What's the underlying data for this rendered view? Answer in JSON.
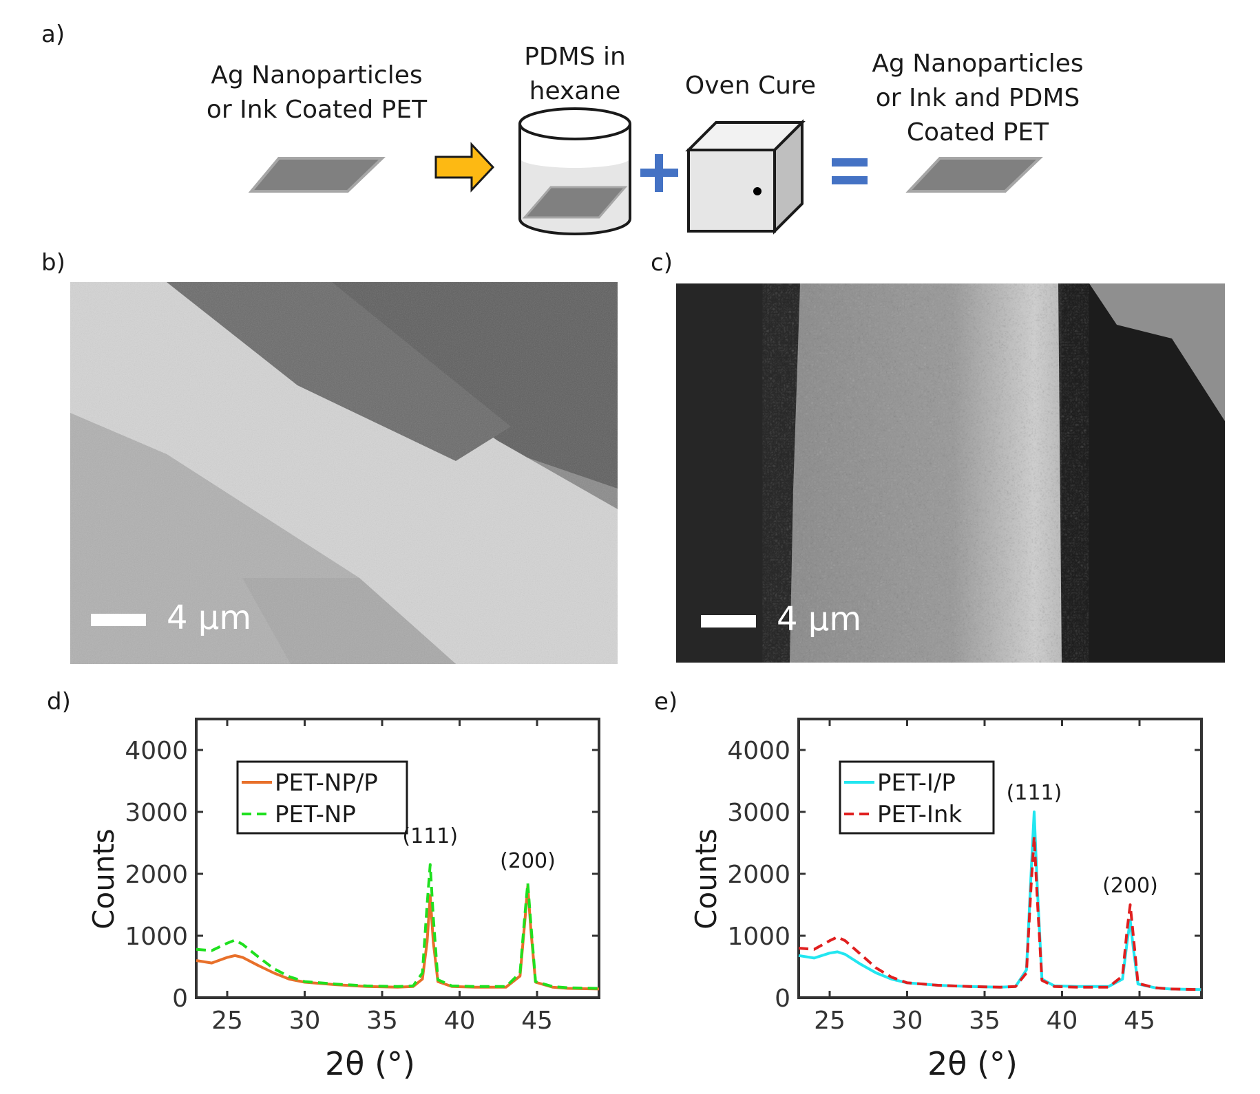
{
  "panels": {
    "a": {
      "label": "a)",
      "step1": "Ag Nanoparticles\nor Ink Coated PET",
      "step2": "PDMS in\nhexane",
      "step3": "Oven Cure",
      "step4": "Ag Nanoparticles\nor Ink and PDMS\nCoated PET",
      "plus": "+",
      "equals": "=",
      "colors": {
        "arrow": "#fdb913",
        "operator": "#4472c4",
        "substrate": "#808080"
      }
    },
    "b": {
      "label": "b)",
      "scale_label": "4 µm"
    },
    "c": {
      "label": "c)",
      "scale_label": "4 µm"
    },
    "d": {
      "label": "d)"
    },
    "e": {
      "label": "e)"
    }
  },
  "chart_data": [
    {
      "type": "line",
      "xlabel": "2θ  (°)",
      "ylabel": "Counts",
      "xlim": [
        23,
        49
      ],
      "ylim": [
        0,
        4500
      ],
      "xticks": [
        25,
        30,
        35,
        40,
        45
      ],
      "yticks": [
        0,
        1000,
        2000,
        3000,
        4000
      ],
      "legend_position": "top-left",
      "annotations": [
        {
          "text": "(111)",
          "x": 38.1,
          "y": 2500
        },
        {
          "text": "(200)",
          "x": 44.4,
          "y": 2100
        }
      ],
      "series": [
        {
          "name": "PET-NP/P",
          "color": "#e8702a",
          "style": "solid",
          "x": [
            23,
            24,
            25,
            25.5,
            26,
            27,
            28,
            29,
            30,
            32,
            34,
            36,
            37,
            37.6,
            37.9,
            38.1,
            38.3,
            38.6,
            39.5,
            41,
            43,
            43.9,
            44.2,
            44.4,
            44.6,
            44.9,
            46,
            47,
            49
          ],
          "y": [
            600,
            560,
            650,
            680,
            650,
            520,
            400,
            300,
            250,
            210,
            180,
            170,
            180,
            300,
            900,
            1650,
            900,
            260,
            180,
            170,
            170,
            350,
            1200,
            1800,
            1100,
            250,
            170,
            150,
            140
          ]
        },
        {
          "name": "PET-NP",
          "color": "#1fe01f",
          "style": "dashed",
          "x": [
            23,
            24,
            25,
            25.5,
            26,
            27,
            28,
            29,
            30,
            32,
            34,
            36,
            37,
            37.6,
            37.9,
            38.1,
            38.3,
            38.6,
            39.5,
            41,
            43,
            43.9,
            44.2,
            44.4,
            44.6,
            44.9,
            46,
            47,
            49
          ],
          "y": [
            780,
            760,
            880,
            930,
            860,
            660,
            470,
            340,
            260,
            220,
            190,
            180,
            190,
            400,
            1500,
            2150,
            1300,
            290,
            190,
            180,
            180,
            400,
            1300,
            1850,
            1200,
            260,
            180,
            160,
            150
          ]
        }
      ]
    },
    {
      "type": "line",
      "xlabel": "2θ  (°)",
      "ylabel": "Counts",
      "xlim": [
        23,
        49
      ],
      "ylim": [
        0,
        4500
      ],
      "xticks": [
        25,
        30,
        35,
        40,
        45
      ],
      "yticks": [
        0,
        1000,
        2000,
        3000,
        4000
      ],
      "legend_position": "top-left",
      "annotations": [
        {
          "text": "(111)",
          "x": 38.2,
          "y": 3200
        },
        {
          "text": "(200)",
          "x": 44.4,
          "y": 1700
        }
      ],
      "series": [
        {
          "name": "PET-I/P",
          "color": "#22e6f0",
          "style": "solid",
          "x": [
            23,
            24,
            25,
            25.5,
            26,
            27,
            28,
            29,
            30,
            32,
            34,
            36,
            37,
            37.7,
            38.0,
            38.2,
            38.4,
            38.7,
            39.5,
            41,
            43,
            43.9,
            44.2,
            44.4,
            44.6,
            44.9,
            46,
            47,
            49
          ],
          "y": [
            680,
            640,
            720,
            740,
            700,
            540,
            400,
            300,
            240,
            200,
            180,
            170,
            180,
            450,
            2000,
            3000,
            1800,
            300,
            190,
            180,
            180,
            300,
            900,
            1250,
            800,
            220,
            160,
            140,
            130
          ]
        },
        {
          "name": "PET-Ink",
          "color": "#e01f1f",
          "style": "dashed",
          "x": [
            23,
            24,
            25,
            25.5,
            26,
            27,
            28,
            29,
            30,
            32,
            34,
            36,
            37,
            37.7,
            38.0,
            38.2,
            38.4,
            38.7,
            39.5,
            41,
            43,
            43.9,
            44.2,
            44.4,
            44.6,
            44.9,
            46,
            47,
            49
          ],
          "y": [
            800,
            780,
            920,
            980,
            920,
            700,
            480,
            330,
            240,
            200,
            180,
            170,
            180,
            400,
            1800,
            2600,
            1600,
            280,
            180,
            170,
            170,
            350,
            1100,
            1500,
            1000,
            230,
            160,
            140,
            130
          ]
        }
      ]
    }
  ]
}
